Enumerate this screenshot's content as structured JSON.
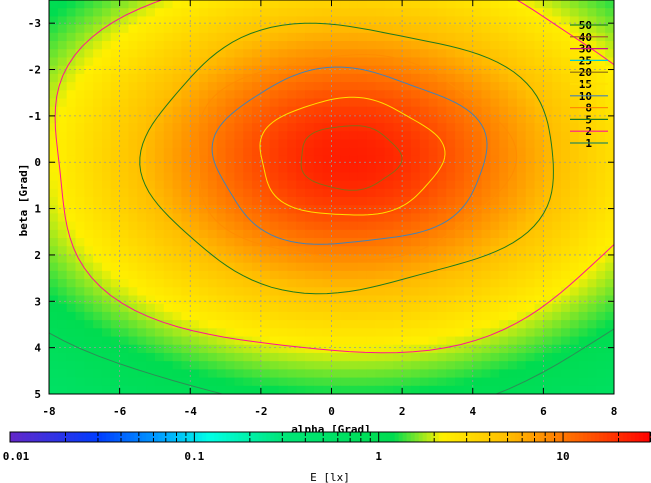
{
  "chart_data": {
    "type": "heatmap",
    "title": "",
    "xlabel": "alpha [Grad]",
    "ylabel": "beta [Grad]",
    "xlim": [
      -8,
      8
    ],
    "ylim": [
      -3.5,
      5
    ],
    "y_axis_inverted": true,
    "x_ticks": [
      -8,
      -6,
      -4,
      -2,
      0,
      2,
      4,
      6,
      8
    ],
    "y_ticks": [
      -3,
      -2,
      -1,
      0,
      1,
      2,
      3,
      4,
      5
    ],
    "grid": true,
    "legend_placement": "top-right",
    "colorbar": {
      "label": "E [lx]",
      "scale": "log",
      "range": [
        0.01,
        30
      ],
      "ticks": [
        0.01,
        0.1,
        1,
        10
      ],
      "tick_labels": [
        "0.01",
        "0.1",
        "1",
        "10"
      ]
    },
    "peak_value": 23,
    "peak_center": [
      0.5,
      -0.1
    ],
    "contours": [
      {
        "level": 50,
        "label": "50",
        "color": "#228b22"
      },
      {
        "level": 40,
        "label": "40",
        "color": "#a0522d"
      },
      {
        "level": 30,
        "label": "30",
        "color": "#c71585"
      },
      {
        "level": 25,
        "label": "25",
        "color": "#00ced1"
      },
      {
        "level": 20,
        "label": "20",
        "color": "#8b6914"
      },
      {
        "level": 15,
        "label": "15",
        "color": "#ffe000"
      },
      {
        "level": 10,
        "label": "10",
        "color": "#4682b4"
      },
      {
        "level": 8,
        "label": "8",
        "color": "#ff8c00"
      },
      {
        "level": 5,
        "label": "5",
        "color": "#1e7a1e"
      },
      {
        "level": 2,
        "label": "2",
        "color": "#ff1493"
      },
      {
        "level": 1,
        "label": "1",
        "color": "#2e8b57"
      }
    ]
  }
}
